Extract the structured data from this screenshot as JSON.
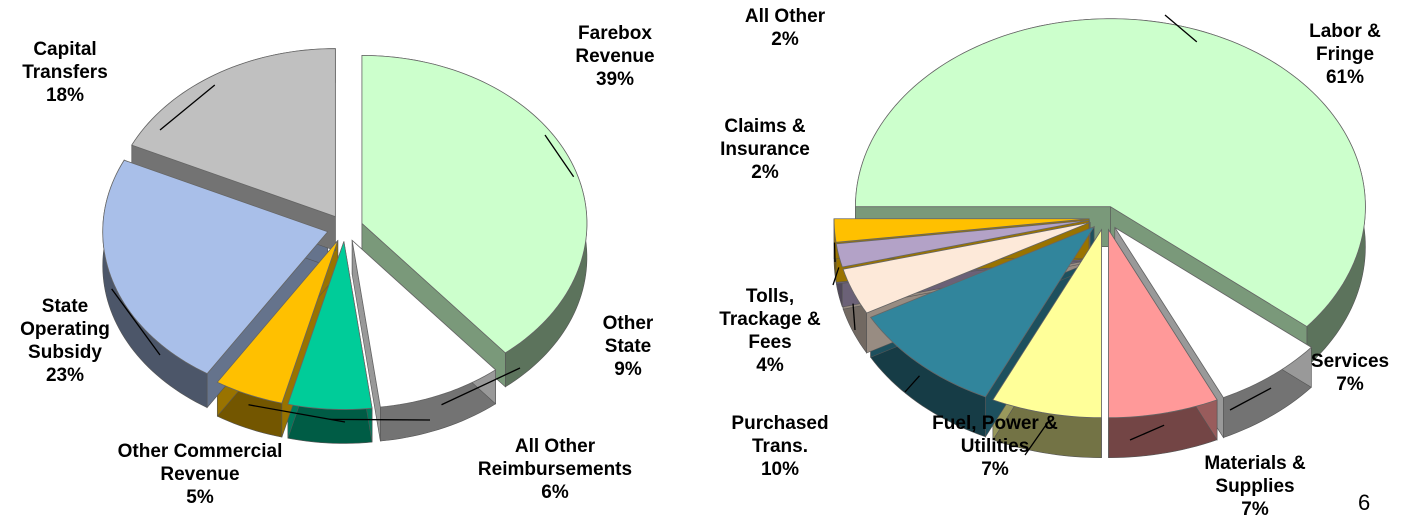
{
  "chart_data": [
    {
      "type": "pie",
      "categories": [
        "Farebox Revenue",
        "Other State",
        "All Other Reimbursements",
        "Other Commercial Revenue",
        "State Operating Subsidy",
        "Capital Transfers"
      ],
      "values": [
        39,
        9,
        6,
        5,
        23,
        18
      ],
      "value_labels": [
        "39%",
        "9%",
        "6%",
        "5%",
        "23%",
        "18%"
      ],
      "colors": [
        "#ccffcc",
        "#ffffff",
        "#00cc99",
        "#ffc000",
        "#a9bfe9",
        "#c0c0c0"
      ]
    },
    {
      "type": "pie",
      "categories": [
        "Labor & Fringe",
        "Services",
        "Materials & Supplies",
        "Fuel, Power & Utilities",
        "Purchased Trans.",
        "Tolls, Trackage & Fees",
        "Claims & Insurance",
        "All Other"
      ],
      "values": [
        61,
        7,
        7,
        7,
        10,
        4,
        2,
        2
      ],
      "value_labels": [
        "61%",
        "7%",
        "7%",
        "7%",
        "10%",
        "4%",
        "2%",
        "2%"
      ],
      "colors": [
        "#ccffcc",
        "#ffffff",
        "#ff9999",
        "#ffff99",
        "#31859c",
        "#fde9d9",
        "#b3a2c7",
        "#ffc000"
      ]
    }
  ],
  "page_number": "6"
}
